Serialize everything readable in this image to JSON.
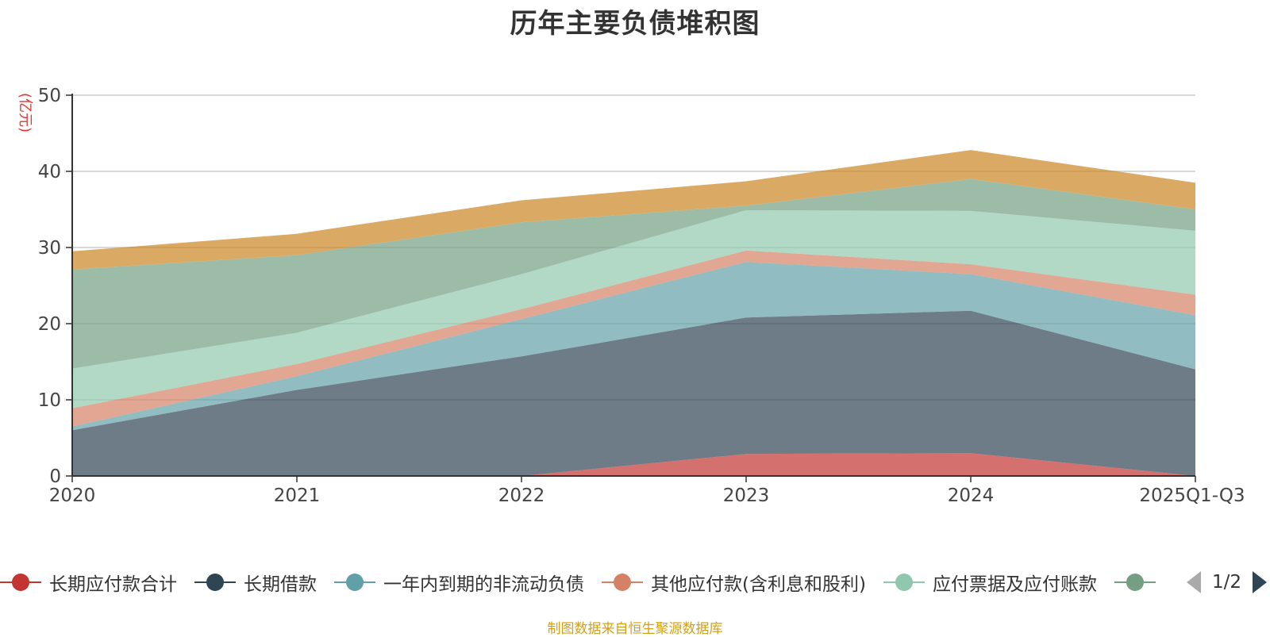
{
  "chart_data": {
    "type": "area",
    "stacked": true,
    "title": "历年主要负债堆积图",
    "unit_label": "(亿元)",
    "categories": [
      "2020",
      "2021",
      "2022",
      "2023",
      "2024",
      "2025Q1-Q3"
    ],
    "ylim": [
      0,
      50
    ],
    "yticks": [
      0,
      10,
      20,
      30,
      40,
      50
    ],
    "grid": true,
    "legend_position": "bottom",
    "series": [
      {
        "name": "长期应付款合计",
        "color": "#c23531",
        "values": [
          0,
          0,
          0,
          2.9,
          3.0,
          0
        ]
      },
      {
        "name": "长期借款",
        "color": "#2f4554",
        "values": [
          6.0,
          11.3,
          15.7,
          17.9,
          18.7,
          14.0
        ]
      },
      {
        "name": "一年内到期的非流动负债",
        "color": "#61a0a8",
        "values": [
          0.5,
          1.8,
          4.9,
          7.3,
          4.8,
          7.1
        ]
      },
      {
        "name": "其他应付款(含利息和股利)",
        "color": "#d48265",
        "values": [
          2.4,
          1.6,
          1.3,
          1.5,
          1.3,
          2.7
        ]
      },
      {
        "name": "应付票据及应付账款",
        "color": "#91c7ae",
        "values": [
          5.2,
          4.1,
          4.6,
          5.3,
          7.0,
          8.4
        ]
      },
      {
        "name": "",
        "color": "#749f83",
        "values": [
          13.0,
          10.2,
          6.8,
          0.6,
          4.2,
          2.8
        ]
      },
      {
        "name": "",
        "color": "#ca8622",
        "values": [
          2.4,
          2.8,
          2.9,
          3.2,
          3.8,
          3.5
        ]
      }
    ]
  },
  "legend": {
    "page_text": "1/2"
  },
  "source_note": "制图数据来自恒生聚源数据库"
}
